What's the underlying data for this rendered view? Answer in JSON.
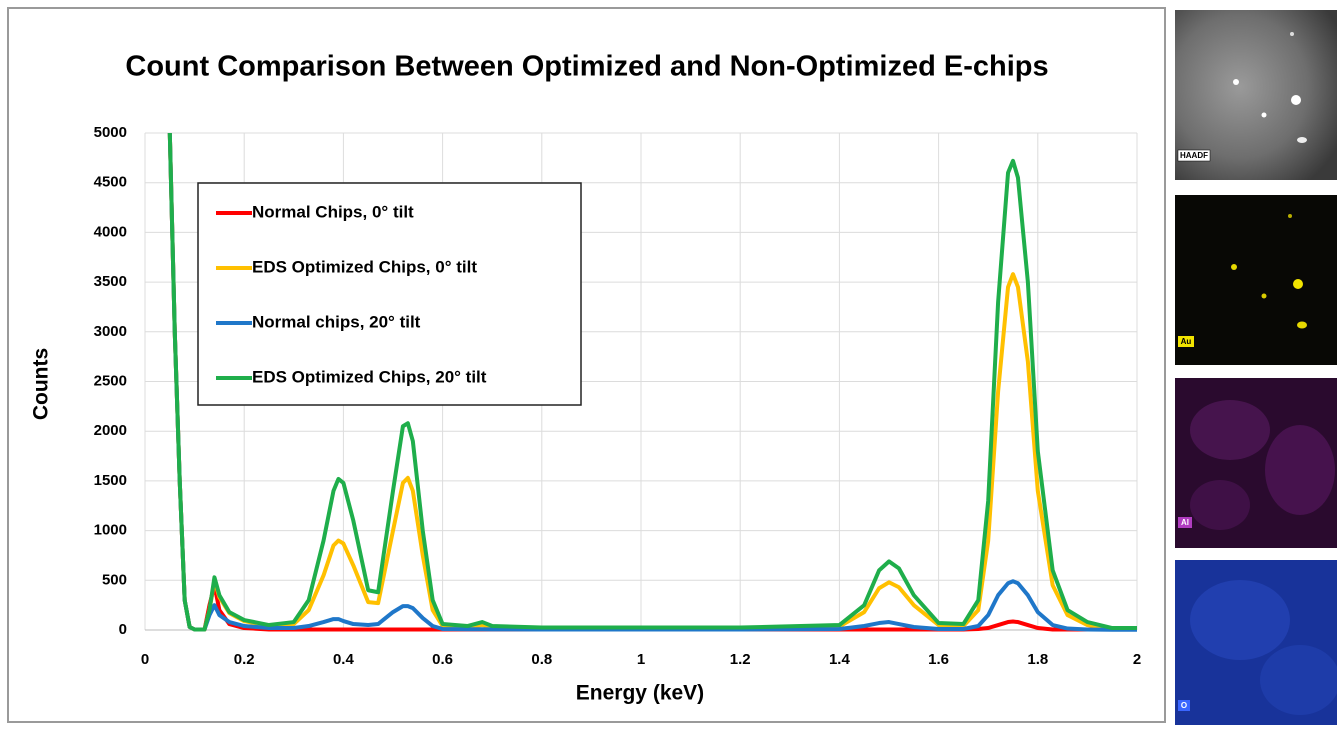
{
  "chart_data": {
    "type": "line",
    "title": "Count Comparison Between Optimized and Non-Optimized E-chips",
    "x_label": "Energy (keV)",
    "y_label": "Counts",
    "x": [
      0.05,
      0.06,
      0.07,
      0.08,
      0.09,
      0.1,
      0.12,
      0.13,
      0.14,
      0.15,
      0.17,
      0.2,
      0.25,
      0.3,
      0.33,
      0.36,
      0.38,
      0.39,
      0.4,
      0.42,
      0.45,
      0.47,
      0.5,
      0.52,
      0.53,
      0.54,
      0.56,
      0.58,
      0.6,
      0.65,
      0.68,
      0.7,
      0.8,
      1.0,
      1.2,
      1.4,
      1.45,
      1.48,
      1.5,
      1.52,
      1.55,
      1.6,
      1.65,
      1.68,
      1.7,
      1.72,
      1.74,
      1.75,
      1.76,
      1.78,
      1.8,
      1.83,
      1.86,
      1.9,
      1.95,
      2.0
    ],
    "series": [
      {
        "name": "Normal Chips, 0° tilt",
        "color": "#ff0000",
        "values": [
          5000,
          3000,
          1500,
          300,
          30,
          5,
          5,
          250,
          450,
          200,
          60,
          20,
          5,
          5,
          5,
          5,
          5,
          5,
          5,
          5,
          5,
          5,
          5,
          5,
          5,
          5,
          5,
          5,
          5,
          5,
          5,
          5,
          5,
          5,
          5,
          5,
          5,
          5,
          5,
          5,
          5,
          5,
          5,
          10,
          20,
          50,
          80,
          85,
          80,
          50,
          20,
          5,
          5,
          5,
          5,
          5
        ]
      },
      {
        "name": "EDS Optimized Chips, 0° tilt",
        "color": "#ffc000",
        "values": [
          5000,
          3000,
          1500,
          300,
          30,
          5,
          5,
          200,
          500,
          330,
          170,
          90,
          40,
          60,
          200,
          550,
          850,
          900,
          870,
          650,
          280,
          270,
          1000,
          1480,
          1530,
          1400,
          750,
          200,
          40,
          30,
          50,
          30,
          20,
          20,
          20,
          35,
          180,
          420,
          480,
          430,
          250,
          50,
          40,
          200,
          900,
          2400,
          3450,
          3580,
          3450,
          2700,
          1400,
          450,
          150,
          50,
          15,
          15
        ]
      },
      {
        "name": "Normal chips, 20° tilt",
        "color": "#1f77c9",
        "values": [
          5000,
          3000,
          1500,
          300,
          30,
          5,
          5,
          150,
          250,
          150,
          80,
          40,
          20,
          20,
          40,
          80,
          110,
          110,
          90,
          60,
          50,
          60,
          180,
          240,
          240,
          220,
          120,
          40,
          10,
          8,
          8,
          6,
          5,
          5,
          5,
          10,
          40,
          70,
          80,
          60,
          30,
          10,
          10,
          40,
          150,
          350,
          470,
          490,
          470,
          350,
          180,
          50,
          15,
          5,
          3,
          3
        ]
      },
      {
        "name": "EDS Optimized Chips, 20° tilt",
        "color": "#1fae4b",
        "values": [
          5000,
          3000,
          1500,
          300,
          30,
          5,
          5,
          200,
          530,
          350,
          180,
          100,
          50,
          80,
          300,
          900,
          1400,
          1520,
          1480,
          1100,
          400,
          380,
          1400,
          2050,
          2080,
          1900,
          1000,
          300,
          60,
          40,
          80,
          40,
          25,
          25,
          25,
          50,
          250,
          600,
          690,
          620,
          350,
          70,
          60,
          300,
          1300,
          3300,
          4600,
          4720,
          4550,
          3500,
          1800,
          600,
          200,
          80,
          20,
          20
        ]
      }
    ],
    "xlim": [
      0,
      2
    ],
    "xticks": [
      0,
      0.2,
      0.4,
      0.6,
      0.8,
      1,
      1.2,
      1.4,
      1.6,
      1.8,
      2
    ],
    "ylim": [
      0,
      5000
    ],
    "yticks": [
      0,
      500,
      1000,
      1500,
      2000,
      2500,
      3000,
      3500,
      4000,
      4500,
      5000
    ],
    "grid": true,
    "legend": "upper left"
  },
  "images": [
    {
      "label": "HAADF"
    },
    {
      "label": "Au"
    },
    {
      "label": "Al"
    },
    {
      "label": "O"
    }
  ]
}
